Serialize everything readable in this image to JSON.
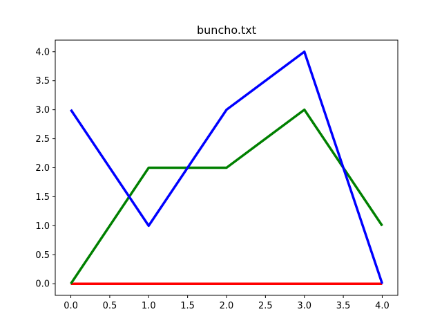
{
  "chart_data": {
    "type": "line",
    "title": "buncho.txt",
    "xlabel": "",
    "ylabel": "",
    "x": [
      0,
      1,
      2,
      3,
      4
    ],
    "xlim": [
      -0.2,
      4.2
    ],
    "ylim": [
      -0.2,
      4.2
    ],
    "xticks": [
      0.0,
      0.5,
      1.0,
      1.5,
      2.0,
      2.5,
      3.0,
      3.5,
      4.0
    ],
    "yticks": [
      0.0,
      0.5,
      1.0,
      1.5,
      2.0,
      2.5,
      3.0,
      3.5,
      4.0
    ],
    "xtick_labels": [
      "0.0",
      "0.5",
      "1.0",
      "1.5",
      "2.0",
      "2.5",
      "3.0",
      "3.5",
      "4.0"
    ],
    "ytick_labels": [
      "0.0",
      "0.5",
      "1.0",
      "1.5",
      "2.0",
      "2.5",
      "3.0",
      "3.5",
      "4.0"
    ],
    "grid": false,
    "legend": "none",
    "series": [
      {
        "color": "#ff0000",
        "values": [
          0,
          0,
          0,
          0,
          0
        ]
      },
      {
        "color": "#008000",
        "values": [
          0,
          2,
          2,
          3,
          1
        ]
      },
      {
        "color": "#0000ff",
        "values": [
          3,
          1,
          3,
          4,
          0
        ]
      }
    ]
  }
}
